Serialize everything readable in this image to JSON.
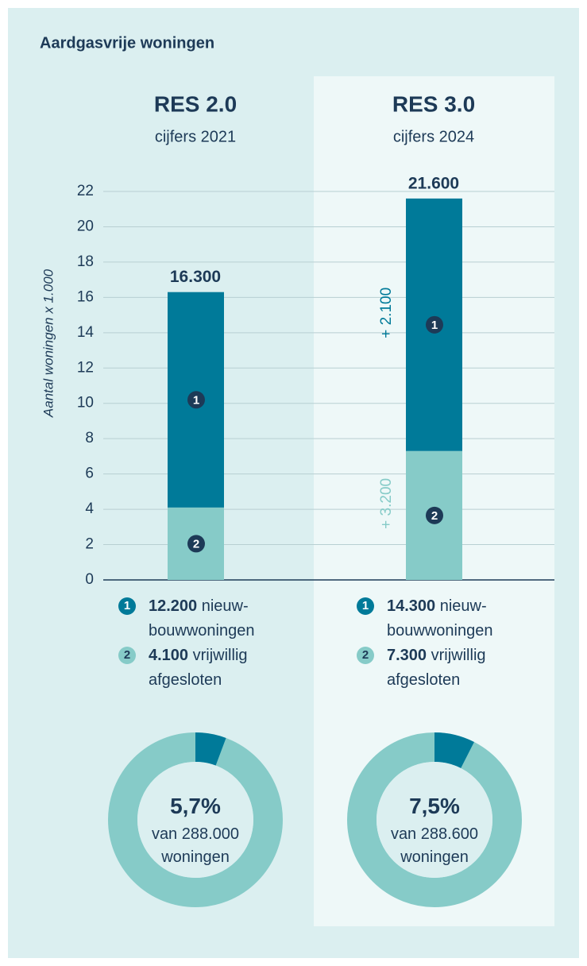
{
  "title": "Aardgasvrije woningen",
  "chart_data": [
    {
      "type": "stacked_bar",
      "y_label": "Aantal woningen x 1.000",
      "categories": [
        "RES 2.0",
        "RES 3.0"
      ],
      "subtitles": [
        "cijfers 2021",
        "cijfers 2024"
      ],
      "series": [
        {
          "key": "2",
          "name": "vrijwillig afgesloten",
          "color": "#86cbc8",
          "values": [
            4.1,
            7.3
          ],
          "value_labels": [
            "4.100",
            "7.300"
          ],
          "annotations": [
            null,
            "+ 3.200"
          ]
        },
        {
          "key": "1",
          "name": "nieuw-bouwwoningen",
          "color": "#007a99",
          "values": [
            12.2,
            14.3
          ],
          "value_labels": [
            "12.200",
            "14.300"
          ],
          "annotations": [
            null,
            "+ 2.100"
          ]
        }
      ],
      "total_labels": [
        "16.300",
        "21.600"
      ],
      "ylim": [
        0,
        22
      ],
      "yticks": [
        0,
        2,
        4,
        6,
        8,
        10,
        12,
        14,
        16,
        18,
        20,
        22
      ],
      "grid": true
    },
    {
      "type": "donut",
      "value": 5.7,
      "value_label": "5,7%",
      "caption": "van 288.000 woningen",
      "color": "#007a99",
      "rest_color": "#86cbc8"
    },
    {
      "type": "donut",
      "value": 7.5,
      "value_label": "7,5%",
      "caption": "van 288.600 woningen",
      "color": "#007a99",
      "rest_color": "#86cbc8"
    }
  ]
}
